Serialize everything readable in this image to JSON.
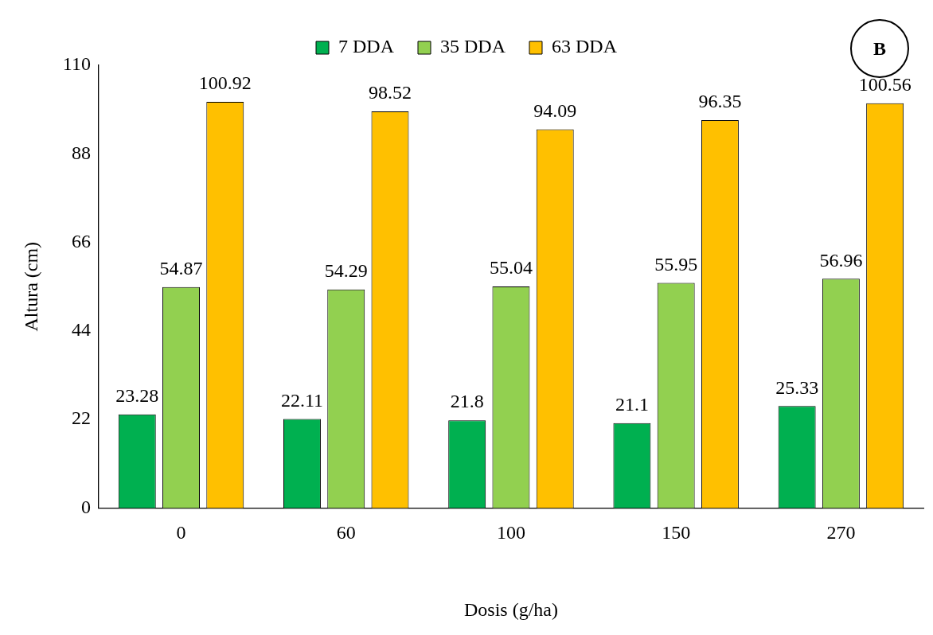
{
  "chart_data": {
    "type": "bar",
    "xlabel": "Dosis (g/ha)",
    "ylabel": "Altura (cm)",
    "categories": [
      "0",
      "60",
      "100",
      "150",
      "270"
    ],
    "series": [
      {
        "name": "7 DDA",
        "color": "#00b050",
        "values": [
          23.28,
          22.11,
          21.8,
          21.1,
          25.33
        ]
      },
      {
        "name": "35 DDA",
        "color": "#92d050",
        "values": [
          54.87,
          54.29,
          55.04,
          55.95,
          56.96
        ]
      },
      {
        "name": "63 DDA",
        "color": "#ffc000",
        "values": [
          100.92,
          98.52,
          94.09,
          96.35,
          100.56
        ]
      }
    ],
    "ylim": [
      0,
      110
    ],
    "yticks": [
      0,
      22,
      44,
      66,
      88,
      110
    ],
    "grid": false,
    "legend": "top",
    "data_labels": true,
    "annotations": [
      "B"
    ]
  }
}
